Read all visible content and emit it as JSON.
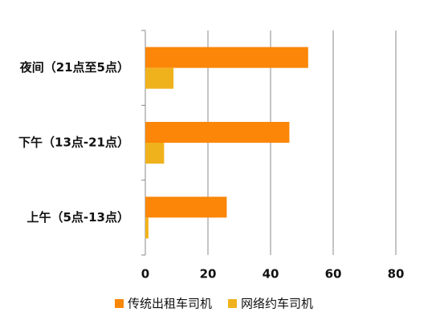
{
  "chart_data": {
    "type": "bar",
    "orientation": "horizontal",
    "categories": [
      "夜间（21点至5点）",
      "下午（13点-21点）",
      "上午（5点-13点）"
    ],
    "series": [
      {
        "name": "传统出租车司机",
        "color": "#fb8607",
        "values": [
          52,
          46,
          26
        ]
      },
      {
        "name": "网络约车司机",
        "color": "#f0b21c",
        "values": [
          9,
          6,
          1
        ]
      }
    ],
    "xlim": [
      0,
      90
    ],
    "xticks": [
      0,
      20,
      40,
      60,
      80
    ],
    "grid": true,
    "legend": "bottom"
  }
}
